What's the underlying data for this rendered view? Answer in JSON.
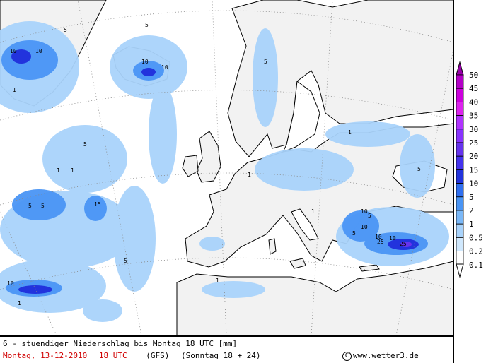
{
  "map": {
    "title_line": "6 - stuendiger Niederschlag bis Montag 18 UTC [mm]",
    "date": "Montag, 13-12-2010",
    "hour": "18 UTC",
    "model": "(GFS)",
    "run": "(Sonntag 18 + 24)",
    "credit": "www.wetter3.de",
    "copyright_symbol": "C"
  },
  "legend": {
    "levels": [
      "50",
      "45",
      "40",
      "35",
      "30",
      "25",
      "20",
      "15",
      "10",
      "5",
      "2",
      "1",
      "0.5",
      "0.2",
      "0.1"
    ],
    "colors": [
      "#9900aa",
      "#b400c8",
      "#cc00dd",
      "#dd22ee",
      "#b033ff",
      "#8833ff",
      "#6633ee",
      "#4433ee",
      "#2233dd",
      "#2f6ff0",
      "#4a95f5",
      "#7ab8f8",
      "#a9d3fb",
      "#d0e8fd",
      "#ffffff"
    ]
  },
  "contour_labels": [
    "1",
    "2",
    "5",
    "10",
    "15",
    "25"
  ],
  "colors": {
    "land": "#f2f2f2",
    "sea": "#ffffff",
    "light_rain": "#a9d3fb",
    "moderate_rain": "#4a95f5",
    "heavy_rain": "#2233dd"
  }
}
